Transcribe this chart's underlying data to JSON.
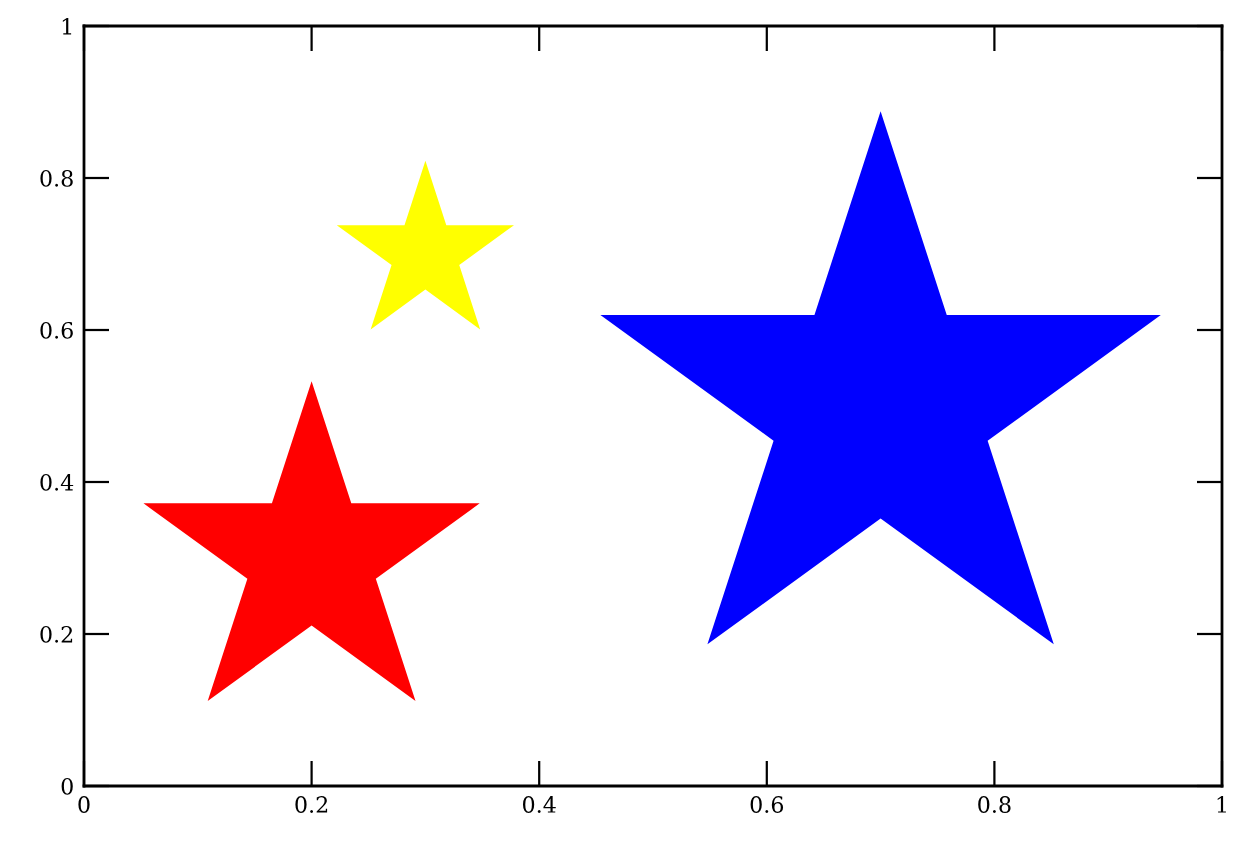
{
  "chart_data": {
    "type": "bubble",
    "marker": "star",
    "x": [
      0.2,
      0.3,
      0.7
    ],
    "values": [
      0.3,
      0.7,
      0.5
    ],
    "sizes": [
      0.36,
      0.1,
      1
    ],
    "colors": [
      "#ff0000",
      "#ffff00",
      "#0000ff"
    ],
    "xlim": [
      0,
      1
    ],
    "ylim": [
      0,
      1
    ],
    "xticks": [
      0,
      0.2,
      0.4,
      0.6,
      0.8,
      1
    ],
    "yticks": [
      0,
      0.2,
      0.4,
      0.6,
      0.8,
      1
    ],
    "grid": false
  }
}
